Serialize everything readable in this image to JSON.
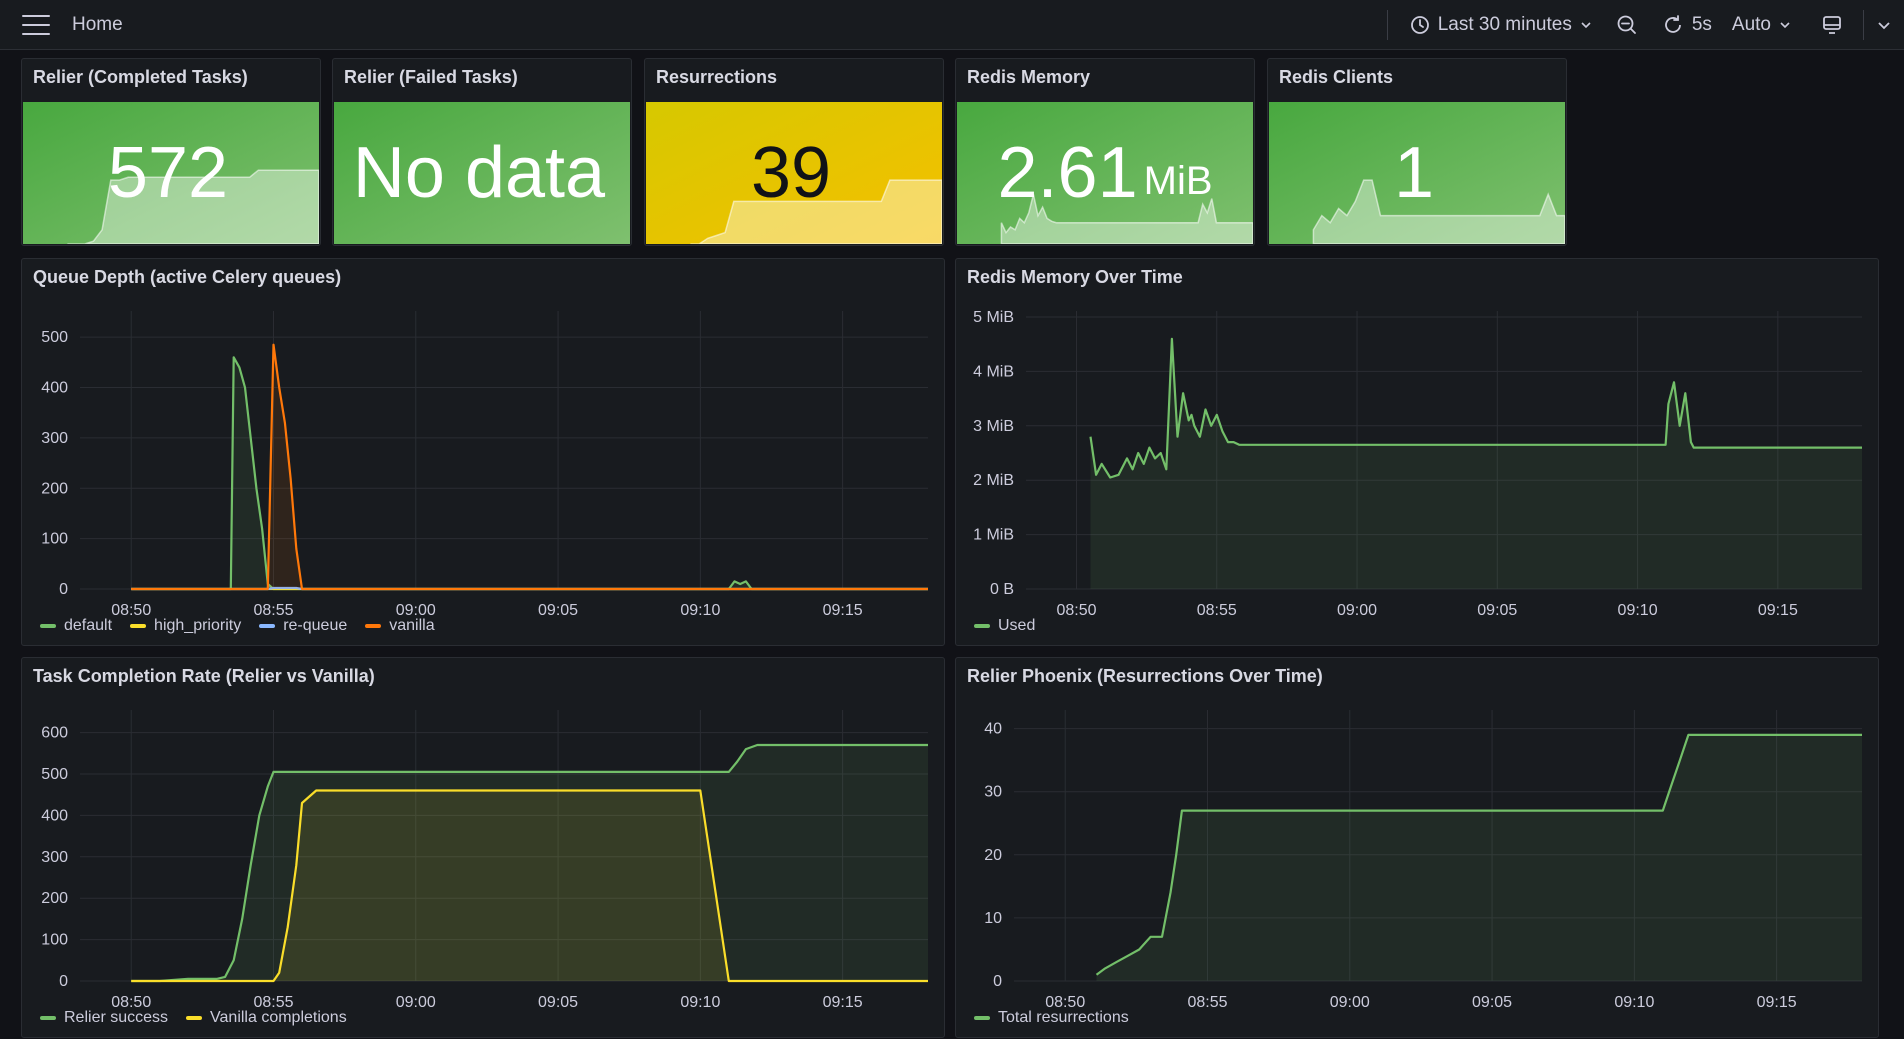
{
  "header": {
    "breadcrumb": "Home",
    "time_range": "Last 30 minutes",
    "refresh_interval": "5s",
    "refresh_mode": "Auto"
  },
  "stats": [
    {
      "title": "Relier (Completed Tasks)",
      "value": "572",
      "unit": "",
      "color": "#56a64b",
      "spark": [
        0,
        0,
        0,
        0.02,
        0.1,
        0.45,
        0.45,
        0.47,
        0.47,
        0.47,
        0.47,
        0.47,
        0.47,
        0.47,
        0.47,
        0.47,
        0.47,
        0.47,
        0.47,
        0.47,
        0.47,
        0.47,
        0.52,
        0.52,
        0.52,
        0.52,
        0.52,
        0.52,
        0.52,
        0.52
      ]
    },
    {
      "title": "Relier (Failed Tasks)",
      "value": "No data",
      "unit": "",
      "color": "#56a64b",
      "spark": []
    },
    {
      "title": "Resurrections",
      "value": "39",
      "unit": "",
      "color": "#e0b400",
      "spark": [
        0,
        0,
        0.04,
        0.06,
        0.08,
        0.3,
        0.3,
        0.3,
        0.3,
        0.3,
        0.3,
        0.3,
        0.3,
        0.3,
        0.3,
        0.3,
        0.3,
        0.3,
        0.3,
        0.3,
        0.3,
        0.3,
        0.3,
        0.45,
        0.45,
        0.45,
        0.45,
        0.45,
        0.45,
        0.45
      ]
    },
    {
      "title": "Redis Memory",
      "value": "2.61",
      "unit": "MiB",
      "color": "#56a64b",
      "spark": [
        0.15,
        0.08,
        0.12,
        0.1,
        0.18,
        0.15,
        0.22,
        0.35,
        0.2,
        0.26,
        0.18,
        0.16,
        0.15,
        0.15,
        0.15,
        0.15,
        0.15,
        0.15,
        0.15,
        0.15,
        0.15,
        0.15,
        0.15,
        0.15,
        0.15,
        0.15,
        0.15,
        0.15,
        0.15,
        0.15,
        0.15,
        0.15,
        0.15,
        0.15,
        0.15,
        0.15,
        0.15,
        0.15,
        0.15,
        0.15,
        0.15,
        0.15,
        0.15,
        0.15,
        0.28,
        0.22,
        0.32,
        0.15,
        0.15,
        0.15,
        0.15,
        0.15,
        0.15,
        0.15,
        0.15,
        0.15
      ]
    },
    {
      "title": "Redis Clients",
      "value": "1",
      "unit": "",
      "color": "#56a64b",
      "spark": [
        0.1,
        0.2,
        0.15,
        0.25,
        0.2,
        0.3,
        0.45,
        0.45,
        0.2,
        0.2,
        0.2,
        0.2,
        0.2,
        0.2,
        0.2,
        0.2,
        0.2,
        0.2,
        0.2,
        0.2,
        0.2,
        0.2,
        0.2,
        0.2,
        0.2,
        0.2,
        0.2,
        0.2,
        0.35,
        0.2,
        0.2
      ]
    }
  ],
  "time_ticks": [
    "08:50",
    "08:55",
    "09:00",
    "09:05",
    "09:10",
    "09:15"
  ],
  "charts": [
    {
      "title": "Queue Depth (active Celery queues)",
      "chart_data": {
        "type": "line",
        "x_minutes": [
          0,
          1,
          2,
          3,
          3.5,
          3.6,
          3.8,
          4,
          4.2,
          4.4,
          4.6,
          4.8,
          5,
          5.2,
          5.4,
          5.6,
          5.8,
          6,
          6.2,
          7,
          8,
          9,
          10,
          11,
          12,
          13,
          14,
          15,
          16,
          17,
          18,
          19,
          20,
          21,
          21.2,
          21.4,
          21.6,
          21.8,
          22,
          23,
          24,
          25,
          26,
          27,
          28
        ],
        "y_ticks": [
          0,
          100,
          200,
          300,
          400,
          500
        ],
        "y_max": 540,
        "series": [
          {
            "name": "default",
            "color": "#73bf69",
            "values": [
              0,
              0,
              0,
              0,
              0,
              460,
              440,
              400,
              300,
              200,
              120,
              10,
              0,
              0,
              0,
              0,
              0,
              0,
              0,
              0,
              0,
              0,
              0,
              0,
              0,
              0,
              0,
              0,
              0,
              0,
              0,
              0,
              0,
              0,
              15,
              10,
              15,
              0,
              0,
              0,
              0,
              0,
              0,
              0,
              0
            ]
          },
          {
            "name": "high_priority",
            "color": "#fade2a",
            "values": [
              0,
              0,
              0,
              0,
              0,
              0,
              0,
              0,
              0,
              0,
              0,
              0,
              0,
              0,
              0,
              0,
              0,
              0,
              0,
              0,
              0,
              0,
              0,
              0,
              0,
              0,
              0,
              0,
              0,
              0,
              0,
              0,
              0,
              0,
              0,
              0,
              0,
              0,
              0,
              0,
              0,
              0,
              0,
              0,
              0
            ]
          },
          {
            "name": "re-queue",
            "color": "#8ab8ff",
            "values": [
              0,
              0,
              0,
              0,
              0,
              0,
              0,
              0,
              0,
              0,
              0,
              0,
              2,
              2,
              2,
              2,
              2,
              0,
              0,
              0,
              0,
              0,
              0,
              0,
              0,
              0,
              0,
              0,
              0,
              0,
              0,
              0,
              0,
              0,
              0,
              0,
              0,
              0,
              0,
              0,
              0,
              0,
              0,
              0,
              0
            ]
          },
          {
            "name": "vanilla",
            "color": "#ff780a",
            "values": [
              0,
              0,
              0,
              0,
              0,
              0,
              0,
              0,
              0,
              0,
              0,
              0,
              485,
              400,
              330,
              220,
              80,
              0,
              0,
              0,
              0,
              0,
              0,
              0,
              0,
              0,
              0,
              0,
              0,
              0,
              0,
              0,
              0,
              0,
              0,
              0,
              0,
              0,
              0,
              0,
              0,
              0,
              0,
              0,
              0
            ]
          }
        ]
      }
    },
    {
      "title": "Redis Memory Over Time",
      "chart_data": {
        "type": "area",
        "x_minutes": [
          0.5,
          0.7,
          0.9,
          1.2,
          1.5,
          1.8,
          2,
          2.2,
          2.4,
          2.6,
          2.8,
          3,
          3.2,
          3.4,
          3.6,
          3.8,
          4,
          4.1,
          4.2,
          4.4,
          4.6,
          4.8,
          5,
          5.2,
          5.4,
          5.6,
          5.8,
          6,
          6.2,
          6.5,
          7,
          8,
          9,
          10,
          11,
          12,
          13,
          14,
          15,
          16,
          17,
          18,
          19,
          20,
          21,
          21.1,
          21.3,
          21.5,
          21.7,
          21.9,
          22,
          23,
          24,
          25,
          26,
          27,
          28
        ],
        "y_ticks": [
          "0 B",
          "1 MiB",
          "2 MiB",
          "3 MiB",
          "4 MiB",
          "5 MiB"
        ],
        "y_max": 5,
        "series": [
          {
            "name": "Used",
            "color": "#73bf69",
            "values": [
              2.8,
              2.1,
              2.3,
              2.05,
              2.1,
              2.4,
              2.2,
              2.5,
              2.3,
              2.6,
              2.4,
              2.5,
              2.2,
              4.6,
              2.8,
              3.6,
              3.1,
              3.2,
              3.0,
              2.8,
              3.3,
              3.0,
              3.2,
              2.9,
              2.7,
              2.7,
              2.65,
              2.65,
              2.65,
              2.65,
              2.65,
              2.65,
              2.65,
              2.65,
              2.65,
              2.65,
              2.65,
              2.65,
              2.65,
              2.65,
              2.65,
              2.65,
              2.65,
              2.65,
              2.65,
              3.4,
              3.8,
              3.0,
              3.6,
              2.7,
              2.6,
              2.6,
              2.6,
              2.6,
              2.6,
              2.6,
              2.6
            ]
          }
        ]
      }
    },
    {
      "title": "Task Completion Rate (Relier vs Vanilla)",
      "chart_data": {
        "type": "line",
        "x_minutes": [
          0,
          1,
          2,
          3,
          3.3,
          3.6,
          3.9,
          4.2,
          4.5,
          4.8,
          5,
          5.2,
          5.5,
          5.8,
          6,
          6.5,
          7,
          10,
          15,
          20,
          21,
          21.3,
          21.6,
          22,
          23,
          24,
          25,
          26,
          27,
          28
        ],
        "y_ticks": [
          0,
          100,
          200,
          300,
          400,
          500,
          600
        ],
        "y_max": 640,
        "series": [
          {
            "name": "Relier success",
            "color": "#73bf69",
            "values": [
              0,
              0,
              5,
              5,
              10,
              50,
              150,
              280,
              400,
              470,
              505,
              505,
              505,
              505,
              505,
              505,
              505,
              505,
              505,
              505,
              505,
              530,
              560,
              570,
              570,
              570,
              570,
              570,
              570,
              570
            ]
          },
          {
            "name": "Vanilla completions",
            "color": "#fade2a",
            "values": [
              0,
              0,
              0,
              0,
              0,
              0,
              0,
              0,
              0,
              0,
              0,
              20,
              130,
              280,
              430,
              460,
              460,
              460,
              460,
              460,
              0,
              0,
              0,
              0,
              0,
              0,
              0,
              0,
              0,
              0
            ]
          }
        ]
      }
    },
    {
      "title": "Relier Phoenix (Resurrections Over Time)",
      "chart_data": {
        "type": "line",
        "x_minutes": [
          1.1,
          1.4,
          1.8,
          2.2,
          2.6,
          3,
          3.4,
          3.7,
          3.9,
          4.1,
          4.3,
          4.5,
          5,
          10,
          15,
          20,
          21,
          21.3,
          21.6,
          21.9,
          22.2,
          23,
          24,
          25,
          26,
          27,
          28
        ],
        "y_ticks": [
          0,
          10,
          20,
          30,
          40
        ],
        "y_max": 42,
        "series": [
          {
            "name": "Total resurrections",
            "color": "#73bf69",
            "values": [
              1,
              2,
              3,
              4,
              5,
              7,
              7,
              14,
              20,
              27,
              27,
              27,
              27,
              27,
              27,
              27,
              27,
              31,
              35,
              39,
              39,
              39,
              39,
              39,
              39,
              39,
              39
            ]
          }
        ]
      }
    }
  ]
}
